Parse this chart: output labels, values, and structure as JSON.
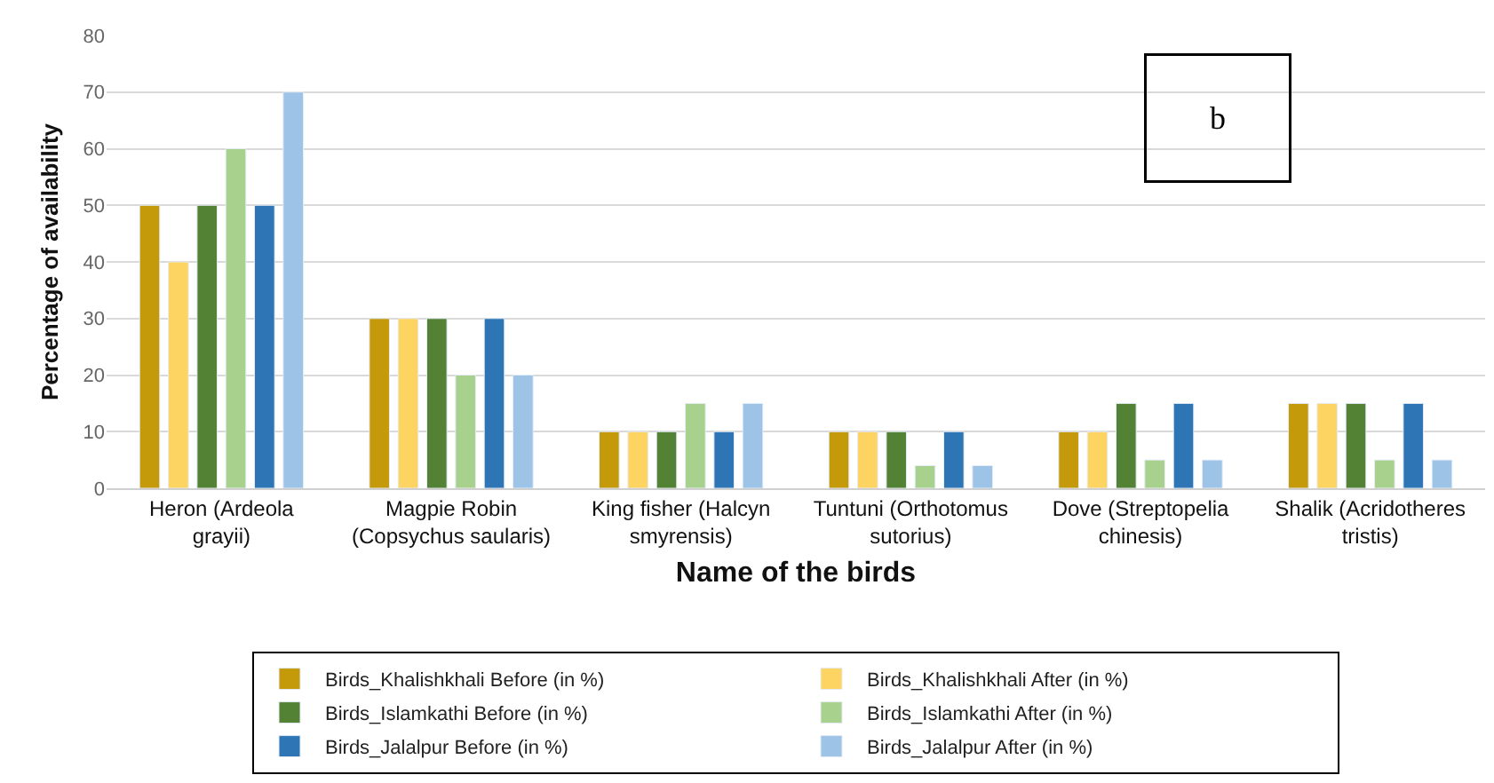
{
  "chart_data": {
    "type": "bar",
    "xlabel": "Name of the birds",
    "ylabel": "Percentage of availability",
    "categories": [
      "Heron (Ardeola grayii)",
      "Magpie Robin (Copsychus saularis)",
      "King fisher (Halcyn smyrensis)",
      "Tuntuni (Orthotomus sutorius)",
      "Dove (Streptopelia chinesis)",
      "Shalik (Acridotheres tristis)"
    ],
    "series": [
      {
        "name": "Birds_Khalishkhali Before (in %)",
        "color": "#c49a0a",
        "values": [
          50,
          30,
          10,
          10,
          10,
          15
        ]
      },
      {
        "name": "Birds_Khalishkhali After (in %)",
        "color": "#fdd462",
        "values": [
          40,
          30,
          10,
          10,
          10,
          15
        ]
      },
      {
        "name": "Birds_Islamkathi Before (in %)",
        "color": "#548235",
        "values": [
          50,
          30,
          10,
          10,
          15,
          15
        ]
      },
      {
        "name": "Birds_Islamkathi After (in %)",
        "color": "#a9d18e",
        "values": [
          60,
          20,
          15,
          4,
          5,
          5
        ]
      },
      {
        "name": "Birds_Jalalpur Before (in %)",
        "color": "#2e75b6",
        "values": [
          50,
          30,
          10,
          10,
          15,
          15
        ]
      },
      {
        "name": "Birds_Jalalpur After (in %)",
        "color": "#9dc3e6",
        "values": [
          70,
          20,
          15,
          4,
          5,
          5
        ]
      }
    ],
    "ylim": [
      0,
      80
    ],
    "yticks": [
      0,
      10,
      20,
      30,
      40,
      50,
      60,
      70,
      80
    ],
    "grid": "y",
    "legend": "bottom",
    "annotations": [
      "b"
    ]
  }
}
